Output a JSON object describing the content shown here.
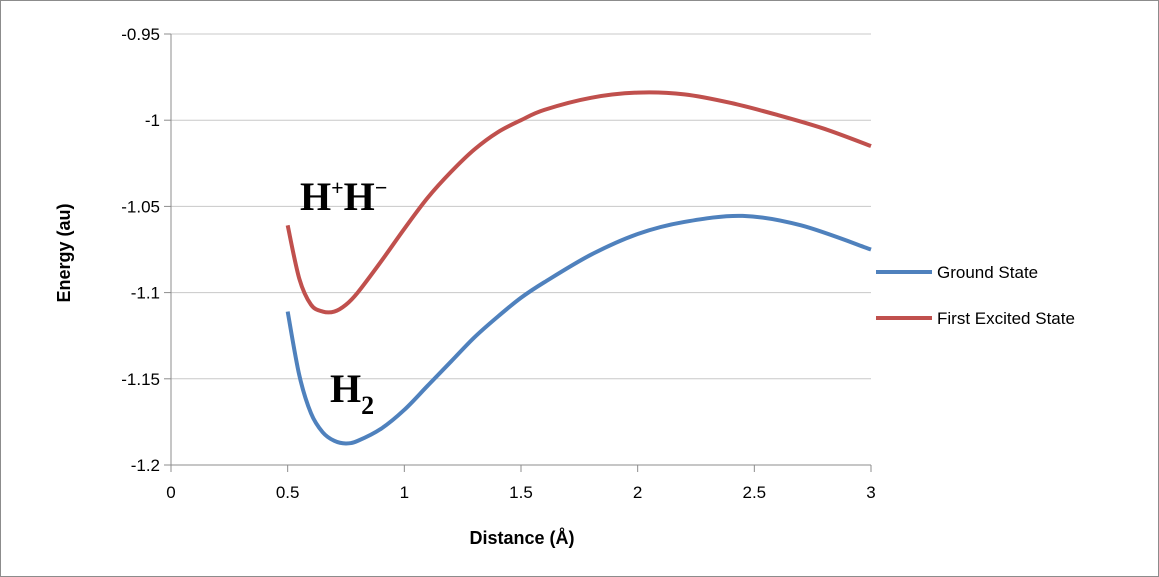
{
  "chart_data": {
    "type": "line",
    "xlabel": "Distance (Å)",
    "ylabel": "Energy (au)",
    "xlim": [
      0,
      3
    ],
    "ylim": [
      -1.2,
      -0.95
    ],
    "x_ticks": [
      "0",
      "0.5",
      "1",
      "1.5",
      "2",
      "2.5",
      "3"
    ],
    "y_ticks": [
      "-0.95",
      "-1",
      "-1.05",
      "-1.1",
      "-1.15",
      "-1.2"
    ],
    "grid": "horizontal",
    "legend_position": "right",
    "series": [
      {
        "name": "Ground State",
        "color": "#4f81bd",
        "x": [
          0.5,
          0.55,
          0.6,
          0.65,
          0.7,
          0.75,
          0.8,
          0.9,
          1.0,
          1.1,
          1.2,
          1.3,
          1.4,
          1.5,
          1.6,
          1.8,
          2.0,
          2.2,
          2.45,
          2.7,
          3.0
        ],
        "y": [
          -1.111,
          -1.148,
          -1.17,
          -1.181,
          -1.186,
          -1.1875,
          -1.186,
          -1.179,
          -1.168,
          -1.154,
          -1.14,
          -1.126,
          -1.114,
          -1.103,
          -1.094,
          -1.078,
          -1.066,
          -1.059,
          -1.0555,
          -1.061,
          -1.075
        ]
      },
      {
        "name": "First Excited State",
        "color": "#c0504d",
        "x": [
          0.5,
          0.55,
          0.6,
          0.65,
          0.7,
          0.75,
          0.8,
          0.9,
          1.0,
          1.1,
          1.2,
          1.3,
          1.4,
          1.5,
          1.6,
          1.8,
          2.0,
          2.2,
          2.4,
          2.6,
          2.8,
          3.0
        ],
        "y": [
          -1.061,
          -1.092,
          -1.107,
          -1.111,
          -1.111,
          -1.107,
          -1.1,
          -1.082,
          -1.063,
          -1.045,
          -1.03,
          -1.017,
          -1.007,
          -1.0,
          -0.994,
          -0.987,
          -0.984,
          -0.985,
          -0.99,
          -0.997,
          -1.005,
          -1.015
        ]
      }
    ],
    "annotations": [
      {
        "base1": "H",
        "sup1": "+",
        "base2": "H",
        "sup2": "−"
      },
      {
        "base": "H",
        "sub": "2"
      }
    ]
  }
}
